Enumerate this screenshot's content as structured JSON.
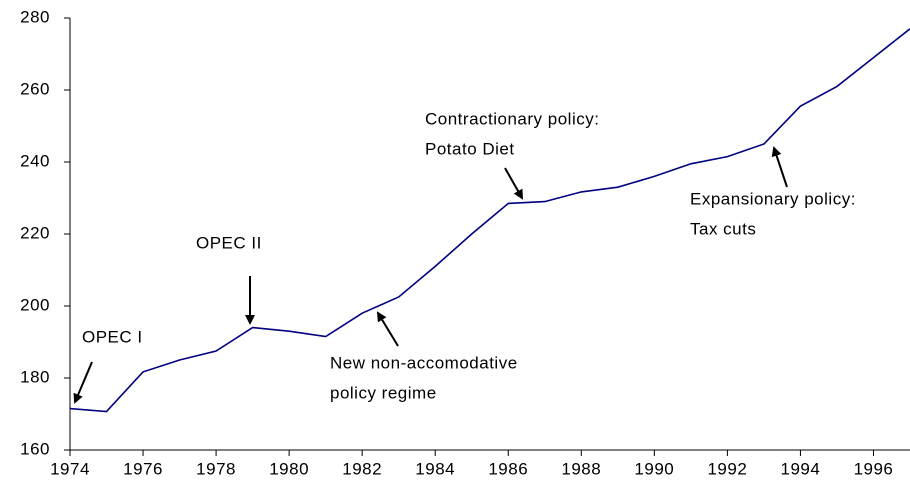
{
  "chart_data": {
    "type": "line",
    "x": [
      1974,
      1975,
      1976,
      1977,
      1978,
      1979,
      1980,
      1981,
      1982,
      1983,
      1984,
      1985,
      1986,
      1987,
      1988,
      1989,
      1990,
      1991,
      1992,
      1993,
      1994,
      1995,
      1996,
      1997
    ],
    "values": [
      171.5,
      170.7,
      181.7,
      185,
      187.5,
      194,
      193,
      191.5,
      198,
      202.5,
      211,
      220,
      228.5,
      229,
      231.7,
      233,
      236,
      239.5,
      241.5,
      245,
      255.5,
      261,
      269,
      277
    ],
    "color": "#000080",
    "xlim": [
      1974,
      1997
    ],
    "xticks": [
      1974,
      1976,
      1978,
      1980,
      1982,
      1984,
      1986,
      1988,
      1990,
      1992,
      1994,
      1996
    ],
    "ylim": [
      160,
      280
    ],
    "yticks": [
      160,
      180,
      200,
      220,
      240,
      260,
      280
    ],
    "grid": false,
    "annotations": [
      {
        "lines": [
          "OPEC I"
        ]
      },
      {
        "lines": [
          "OPEC II"
        ]
      },
      {
        "lines": [
          "New  non-accomodative",
          "policy regime"
        ]
      },
      {
        "lines": [
          "Contractionary policy:",
          "Potato Diet"
        ]
      },
      {
        "lines": [
          "Expansionary policy:",
          "Tax cuts"
        ]
      }
    ]
  }
}
